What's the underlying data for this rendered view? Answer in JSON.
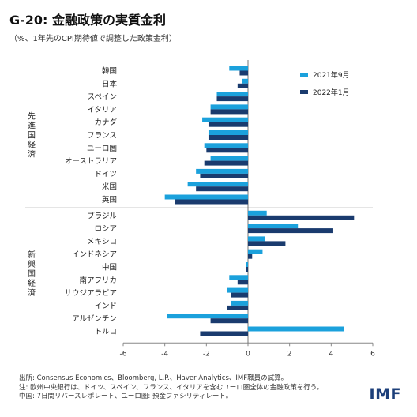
{
  "title": "G-20: 金融政策の実質金利",
  "subtitle": "（%、1年先のCPI期待値で調整した政策金利）",
  "notes": [
    "出所: Consensus Economics、Bloomberg, L.P.、Haver Analytics、IMF職員の試算。",
    "注: 欧州中央銀行は、ドイツ、スペイン、フランス、イタリアを含むユーロ圏全体の金融政策を行う。",
    "中国: 7日間リバースレポレート、ユーロ圏: 預金ファシリティレート。"
  ],
  "logo": "IMF",
  "colors": {
    "series_2021_sep": "#1ba1dc",
    "series_2022_jan": "#1a3b6e"
  },
  "chart_data": {
    "type": "bar",
    "orientation": "horizontal",
    "groups": [
      {
        "label": "先進国経済",
        "categories": [
          "韓国",
          "日本",
          "スペイン",
          "イタリア",
          "カナダ",
          "フランス",
          "ユーロ圏",
          "オーストラリア",
          "ドイツ",
          "米国",
          "英国"
        ]
      },
      {
        "label": "新興国経済",
        "categories": [
          "ブラジル",
          "ロシア",
          "メキシコ",
          "インドネシア",
          "中国",
          "南アフリカ",
          "サウジアラビア",
          "インド",
          "アルゼンチン",
          "トルコ"
        ]
      }
    ],
    "series": [
      {
        "name": "2021年9月",
        "values": [
          -0.9,
          -0.3,
          -1.5,
          -1.8,
          -2.2,
          -1.9,
          -2.1,
          -1.8,
          -2.5,
          -2.9,
          -4.0,
          0.9,
          2.4,
          0.8,
          0.7,
          -0.1,
          -0.9,
          -1.0,
          -0.8,
          -3.9,
          4.6
        ]
      },
      {
        "name": "2022年1月",
        "values": [
          -0.4,
          -0.5,
          -1.5,
          -1.8,
          -1.9,
          -1.9,
          -2.0,
          -2.1,
          -2.3,
          -2.5,
          -3.5,
          5.1,
          4.1,
          1.8,
          0.2,
          -0.1,
          -0.5,
          -0.8,
          -1.0,
          -1.8,
          -2.3
        ]
      }
    ],
    "xlim": [
      -6,
      6
    ],
    "xticks": [
      "-6",
      "-4",
      "-2",
      "0",
      "2",
      "4",
      "6"
    ],
    "legend_position": "top-right",
    "grid": false
  }
}
